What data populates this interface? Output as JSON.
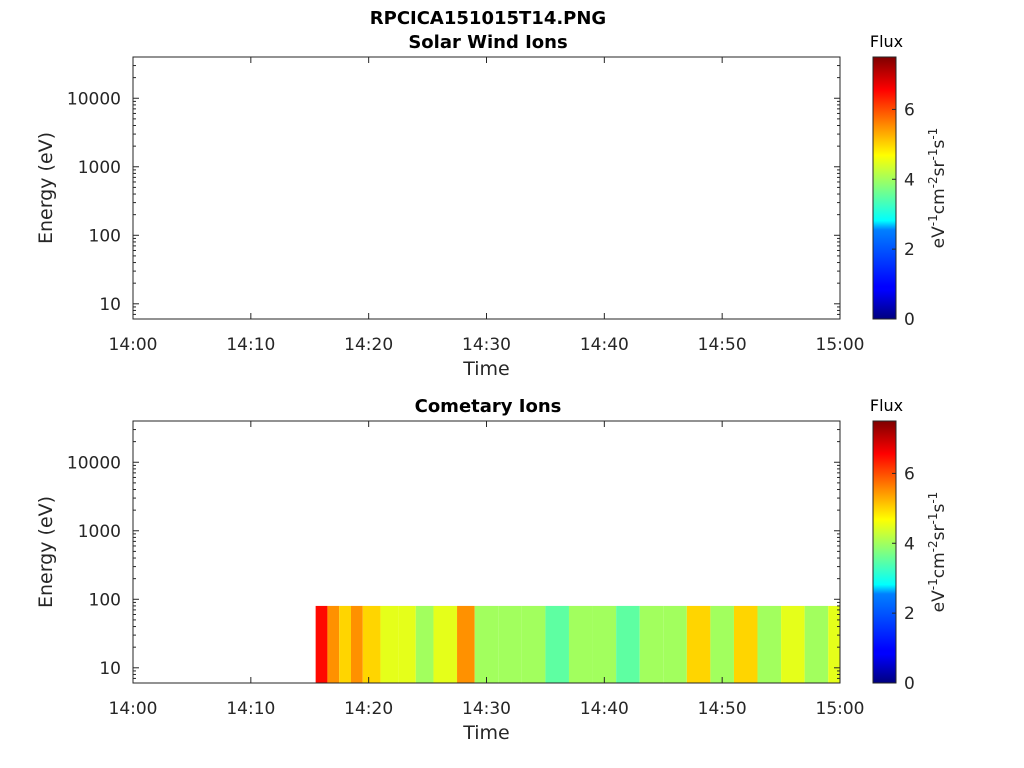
{
  "figure_title": "RPCICA151015T14.PNG",
  "chart_data": [
    {
      "type": "heatmap",
      "title": "Solar Wind Ions",
      "xlabel": "Time",
      "ylabel": "Energy (eV)",
      "x_ticks": [
        "14:00",
        "14:10",
        "14:20",
        "14:30",
        "14:40",
        "14:50",
        "15:00"
      ],
      "xlim": [
        "14:00",
        "15:00"
      ],
      "y_scale": "log",
      "y_ticks": [
        10,
        100,
        1000,
        10000
      ],
      "y_tick_labels": [
        "10",
        "100",
        "1000",
        "10000"
      ],
      "ylim": [
        6,
        40000
      ],
      "colorbar": {
        "label": "Flux",
        "units_label": "eV-1cm-2sr-1s-1",
        "ticks": [
          0,
          2,
          4,
          6
        ],
        "tick_labels": [
          "0",
          "2",
          "4",
          "6"
        ],
        "range": [
          0,
          7.5
        ],
        "colormap": "jet"
      },
      "data": []
    },
    {
      "type": "heatmap",
      "title": "Cometary Ions",
      "xlabel": "Time",
      "ylabel": "Energy (eV)",
      "x_ticks": [
        "14:00",
        "14:10",
        "14:20",
        "14:30",
        "14:40",
        "14:50",
        "15:00"
      ],
      "xlim": [
        "14:00",
        "15:00"
      ],
      "y_scale": "log",
      "y_ticks": [
        10,
        100,
        1000,
        10000
      ],
      "y_tick_labels": [
        "10",
        "100",
        "1000",
        "10000"
      ],
      "ylim": [
        6,
        40000
      ],
      "colorbar": {
        "label": "Flux",
        "units_label": "eV-1cm-2sr-1s-1",
        "ticks": [
          0,
          2,
          4,
          6
        ],
        "tick_labels": [
          "0",
          "2",
          "4",
          "6"
        ],
        "range": [
          0,
          7.5
        ],
        "colormap": "jet"
      },
      "data_extent": {
        "time_start": "14:15:30",
        "time_end": "15:00",
        "energy_min_eV": 6,
        "energy_max_eV": 80
      },
      "data": [
        {
          "time": "14:15:30",
          "flux": 6.5
        },
        {
          "time": "14:16:30",
          "flux": 5.5
        },
        {
          "time": "14:17:30",
          "flux": 5.0
        },
        {
          "time": "14:18:30",
          "flux": 5.5
        },
        {
          "time": "14:19:30",
          "flux": 5.0
        },
        {
          "time": "14:21:00",
          "flux": 4.5
        },
        {
          "time": "14:22:30",
          "flux": 4.5
        },
        {
          "time": "14:24:00",
          "flux": 4.0
        },
        {
          "time": "14:25:30",
          "flux": 4.5
        },
        {
          "time": "14:27:30",
          "flux": 5.5
        },
        {
          "time": "14:29:00",
          "flux": 4.0
        },
        {
          "time": "14:31:00",
          "flux": 4.0
        },
        {
          "time": "14:33:00",
          "flux": 4.0
        },
        {
          "time": "14:35:00",
          "flux": 3.5
        },
        {
          "time": "14:37:00",
          "flux": 4.0
        },
        {
          "time": "14:39:00",
          "flux": 4.0
        },
        {
          "time": "14:41:00",
          "flux": 3.5
        },
        {
          "time": "14:43:00",
          "flux": 4.0
        },
        {
          "time": "14:45:00",
          "flux": 4.0
        },
        {
          "time": "14:47:00",
          "flux": 5.0
        },
        {
          "time": "14:49:00",
          "flux": 4.0
        },
        {
          "time": "14:51:00",
          "flux": 5.0
        },
        {
          "time": "14:53:00",
          "flux": 4.0
        },
        {
          "time": "14:55:00",
          "flux": 4.5
        },
        {
          "time": "14:57:00",
          "flux": 4.0
        },
        {
          "time": "14:59:00",
          "flux": 4.5
        }
      ]
    }
  ]
}
